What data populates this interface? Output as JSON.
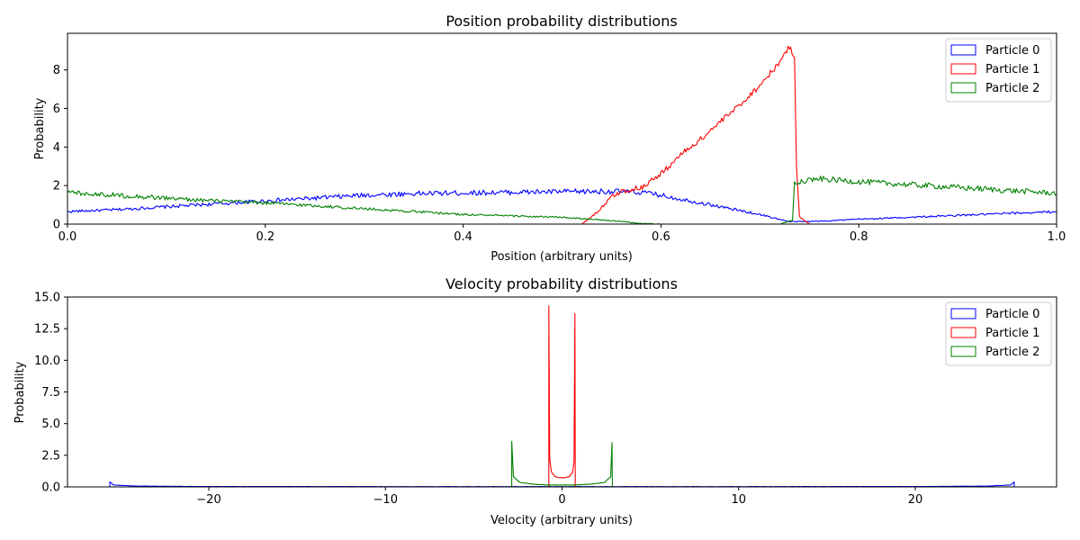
{
  "chart_data": [
    {
      "type": "line",
      "title": "Position probability distributions",
      "xlabel": "Position (arbitrary units)",
      "ylabel": "Probability",
      "xlim": [
        0,
        1
      ],
      "ylim": [
        0,
        9.9
      ],
      "xticks": [
        0,
        0.2,
        0.4,
        0.6,
        0.8,
        1.0
      ],
      "xtick_labels": [
        "0.0",
        "0.2",
        "0.4",
        "0.6",
        "0.8",
        "1.0"
      ],
      "yticks": [
        0,
        2,
        4,
        6,
        8
      ],
      "ytick_labels": [
        "0",
        "2",
        "4",
        "6",
        "8"
      ],
      "grid": false,
      "legend": "top-right",
      "series": [
        {
          "name": "Particle 0",
          "color": "#0000ff",
          "points": [
            [
              0,
              0.65
            ],
            [
              0.05,
              0.75
            ],
            [
              0.1,
              0.9
            ],
            [
              0.15,
              1.05
            ],
            [
              0.2,
              1.2
            ],
            [
              0.25,
              1.35
            ],
            [
              0.3,
              1.5
            ],
            [
              0.35,
              1.58
            ],
            [
              0.4,
              1.62
            ],
            [
              0.45,
              1.65
            ],
            [
              0.5,
              1.68
            ],
            [
              0.55,
              1.7
            ],
            [
              0.58,
              1.65
            ],
            [
              0.6,
              1.5
            ],
            [
              0.65,
              1.0
            ],
            [
              0.7,
              0.5
            ],
            [
              0.73,
              0.12
            ],
            [
              0.76,
              0.15
            ],
            [
              0.8,
              0.25
            ],
            [
              0.85,
              0.35
            ],
            [
              0.9,
              0.45
            ],
            [
              0.95,
              0.55
            ],
            [
              1.0,
              0.65
            ]
          ]
        },
        {
          "name": "Particle 1",
          "color": "#ff0000",
          "points": [
            [
              0,
              0
            ],
            [
              0.52,
              0
            ],
            [
              0.535,
              0.6
            ],
            [
              0.55,
              1.4
            ],
            [
              0.56,
              1.7
            ],
            [
              0.58,
              1.9
            ],
            [
              0.6,
              2.6
            ],
            [
              0.62,
              3.6
            ],
            [
              0.64,
              4.4
            ],
            [
              0.66,
              5.3
            ],
            [
              0.68,
              6.2
            ],
            [
              0.7,
              7.2
            ],
            [
              0.72,
              8.4
            ],
            [
              0.73,
              9.2
            ],
            [
              0.735,
              8.7
            ],
            [
              0.737,
              3.0
            ],
            [
              0.74,
              0.4
            ],
            [
              0.75,
              0
            ],
            [
              1.0,
              0
            ]
          ]
        },
        {
          "name": "Particle 2",
          "color": "#008000",
          "points": [
            [
              0,
              1.65
            ],
            [
              0.05,
              1.5
            ],
            [
              0.1,
              1.35
            ],
            [
              0.15,
              1.2
            ],
            [
              0.2,
              1.1
            ],
            [
              0.25,
              0.95
            ],
            [
              0.3,
              0.8
            ],
            [
              0.35,
              0.65
            ],
            [
              0.4,
              0.5
            ],
            [
              0.45,
              0.42
            ],
            [
              0.5,
              0.35
            ],
            [
              0.55,
              0.18
            ],
            [
              0.58,
              0.03
            ],
            [
              0.6,
              0
            ],
            [
              0.72,
              0
            ],
            [
              0.733,
              0.2
            ],
            [
              0.735,
              2.2
            ],
            [
              0.76,
              2.35
            ],
            [
              0.8,
              2.2
            ],
            [
              0.85,
              2.05
            ],
            [
              0.9,
              1.9
            ],
            [
              0.95,
              1.75
            ],
            [
              1.0,
              1.6
            ]
          ]
        }
      ]
    },
    {
      "type": "line",
      "title": "Velocity probability distributions",
      "xlabel": "Velocity (arbitrary units)",
      "ylabel": "Probability",
      "xlim": [
        -28,
        28
      ],
      "ylim": [
        0,
        15
      ],
      "xticks": [
        -20,
        -10,
        0,
        10,
        20
      ],
      "xtick_labels": [
        "−20",
        "−10",
        "0",
        "10",
        "20"
      ],
      "yticks": [
        0,
        2.5,
        5,
        7.5,
        10,
        12.5,
        15
      ],
      "ytick_labels": [
        "0.0",
        "2.5",
        "5.0",
        "7.5",
        "10.0",
        "12.5",
        "15.0"
      ],
      "grid": false,
      "legend": "top-right",
      "series": [
        {
          "name": "Particle 0",
          "color": "#0000ff",
          "points": [
            [
              -25.6,
              0
            ],
            [
              -25.6,
              0.4
            ],
            [
              -25.4,
              0.15
            ],
            [
              -24,
              0.06
            ],
            [
              -20,
              0.03
            ],
            [
              -10,
              0.02
            ],
            [
              0,
              0.02
            ],
            [
              10,
              0.02
            ],
            [
              20,
              0.03
            ],
            [
              24,
              0.06
            ],
            [
              25.4,
              0.15
            ],
            [
              25.6,
              0.4
            ],
            [
              25.6,
              0
            ]
          ]
        },
        {
          "name": "Particle 1",
          "color": "#ff0000",
          "points": [
            [
              -0.75,
              0
            ],
            [
              -0.75,
              14.3
            ],
            [
              -0.7,
              2.2
            ],
            [
              -0.6,
              1.2
            ],
            [
              -0.4,
              0.8
            ],
            [
              0,
              0.7
            ],
            [
              0.4,
              0.8
            ],
            [
              0.6,
              1.2
            ],
            [
              0.68,
              2.0
            ],
            [
              0.73,
              13.7
            ],
            [
              0.75,
              0
            ]
          ]
        },
        {
          "name": "Particle 2",
          "color": "#008000",
          "points": [
            [
              -2.85,
              0
            ],
            [
              -2.85,
              3.6
            ],
            [
              -2.75,
              0.8
            ],
            [
              -2.4,
              0.35
            ],
            [
              -1.5,
              0.2
            ],
            [
              -0.8,
              0.15
            ],
            [
              0.8,
              0.15
            ],
            [
              1.5,
              0.2
            ],
            [
              2.4,
              0.35
            ],
            [
              2.75,
              0.8
            ],
            [
              2.83,
              3.5
            ],
            [
              2.85,
              0
            ]
          ]
        }
      ]
    }
  ]
}
